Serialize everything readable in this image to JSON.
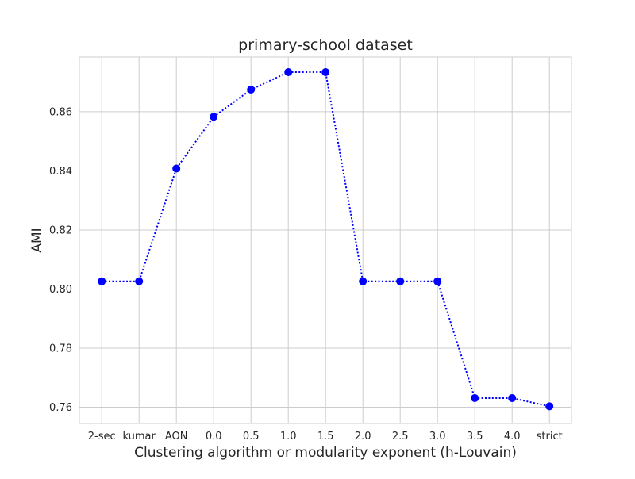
{
  "chart_data": {
    "type": "line",
    "title": "primary-school dataset",
    "xlabel": "Clustering algorithm or modularity exponent (h-Louvain)",
    "ylabel": "AMI",
    "categories": [
      "2-sec",
      "kumar",
      "AON",
      "0.0",
      "0.5",
      "1.0",
      "1.5",
      "2.0",
      "2.5",
      "3.0",
      "3.5",
      "4.0",
      "strict"
    ],
    "series": [
      {
        "values": [
          0.8026,
          0.8026,
          0.8408,
          0.8583,
          0.8675,
          0.8734,
          0.8734,
          0.8026,
          0.8026,
          0.8026,
          0.7631,
          0.7631,
          0.7603
        ]
      }
    ],
    "yticks": [
      0.76,
      0.78,
      0.8,
      0.82,
      0.84,
      0.86
    ],
    "ytick_labels": [
      "0.76",
      "0.78",
      "0.80",
      "0.82",
      "0.84",
      "0.86"
    ],
    "ylim": [
      0.7545,
      0.8785
    ],
    "grid": true,
    "line_style": "dotted",
    "marker": "circle",
    "colors": {
      "series": "#0000ff",
      "grid": "#cccccc",
      "text": "#262626"
    }
  }
}
